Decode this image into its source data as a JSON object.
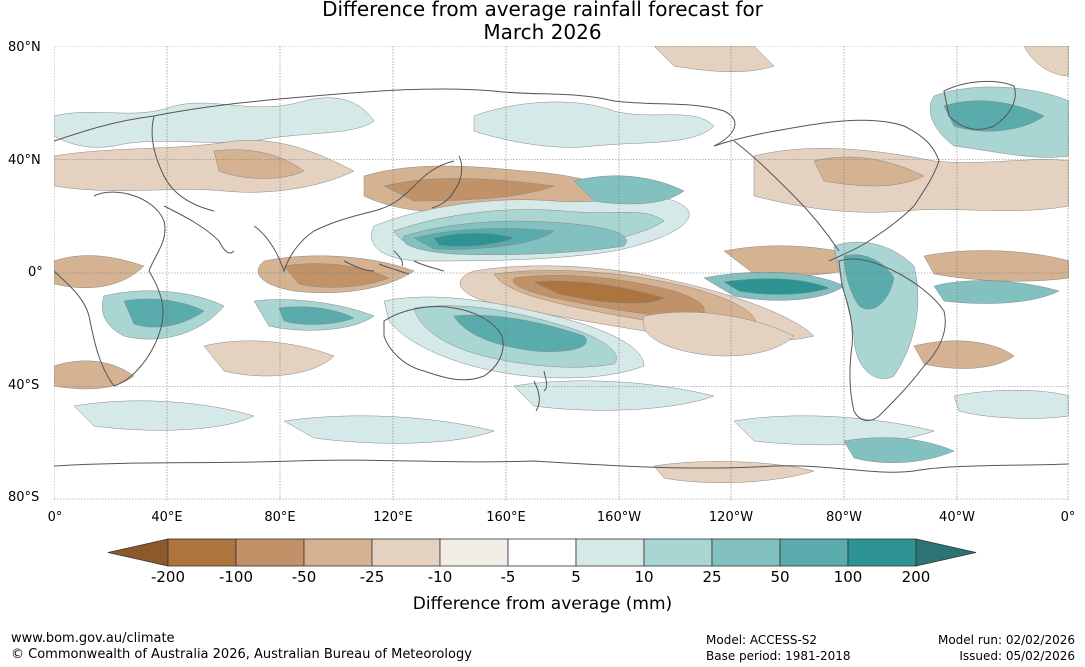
{
  "title_line1": "Difference from average rainfall forecast for",
  "title_line2": "March 2026",
  "lat_labels": [
    "80°N",
    "40°N",
    "0°",
    "40°S",
    "80°S"
  ],
  "lon_labels": [
    "0°",
    "40°E",
    "80°E",
    "120°E",
    "160°E",
    "160°W",
    "120°W",
    "80°W",
    "40°W",
    "0°"
  ],
  "colorbar": {
    "ticks": [
      "-200",
      "-100",
      "-50",
      "-25",
      "-10",
      "-5",
      "5",
      "10",
      "25",
      "50",
      "100",
      "200"
    ],
    "colors": [
      "#8c5a2a",
      "#ad743e",
      "#c19268",
      "#d4b292",
      "#e5d1c0",
      "#f3ede8",
      "#ffffff",
      "#d5e9e8",
      "#a9d5d3",
      "#83c1c0",
      "#5aabab",
      "#2e9493",
      "#2a7473"
    ],
    "label": "Difference from average (mm)"
  },
  "footer": {
    "url": "www.bom.gov.au/climate",
    "copyright": "© Commonwealth of Australia 2026, Australian Bureau of Meteorology",
    "model": "Model: ACCESS-S2",
    "base_period": "Base period: 1981-2018",
    "model_run": "Model run: 02/02/2026",
    "issued": "Issued: 05/02/2026"
  }
}
